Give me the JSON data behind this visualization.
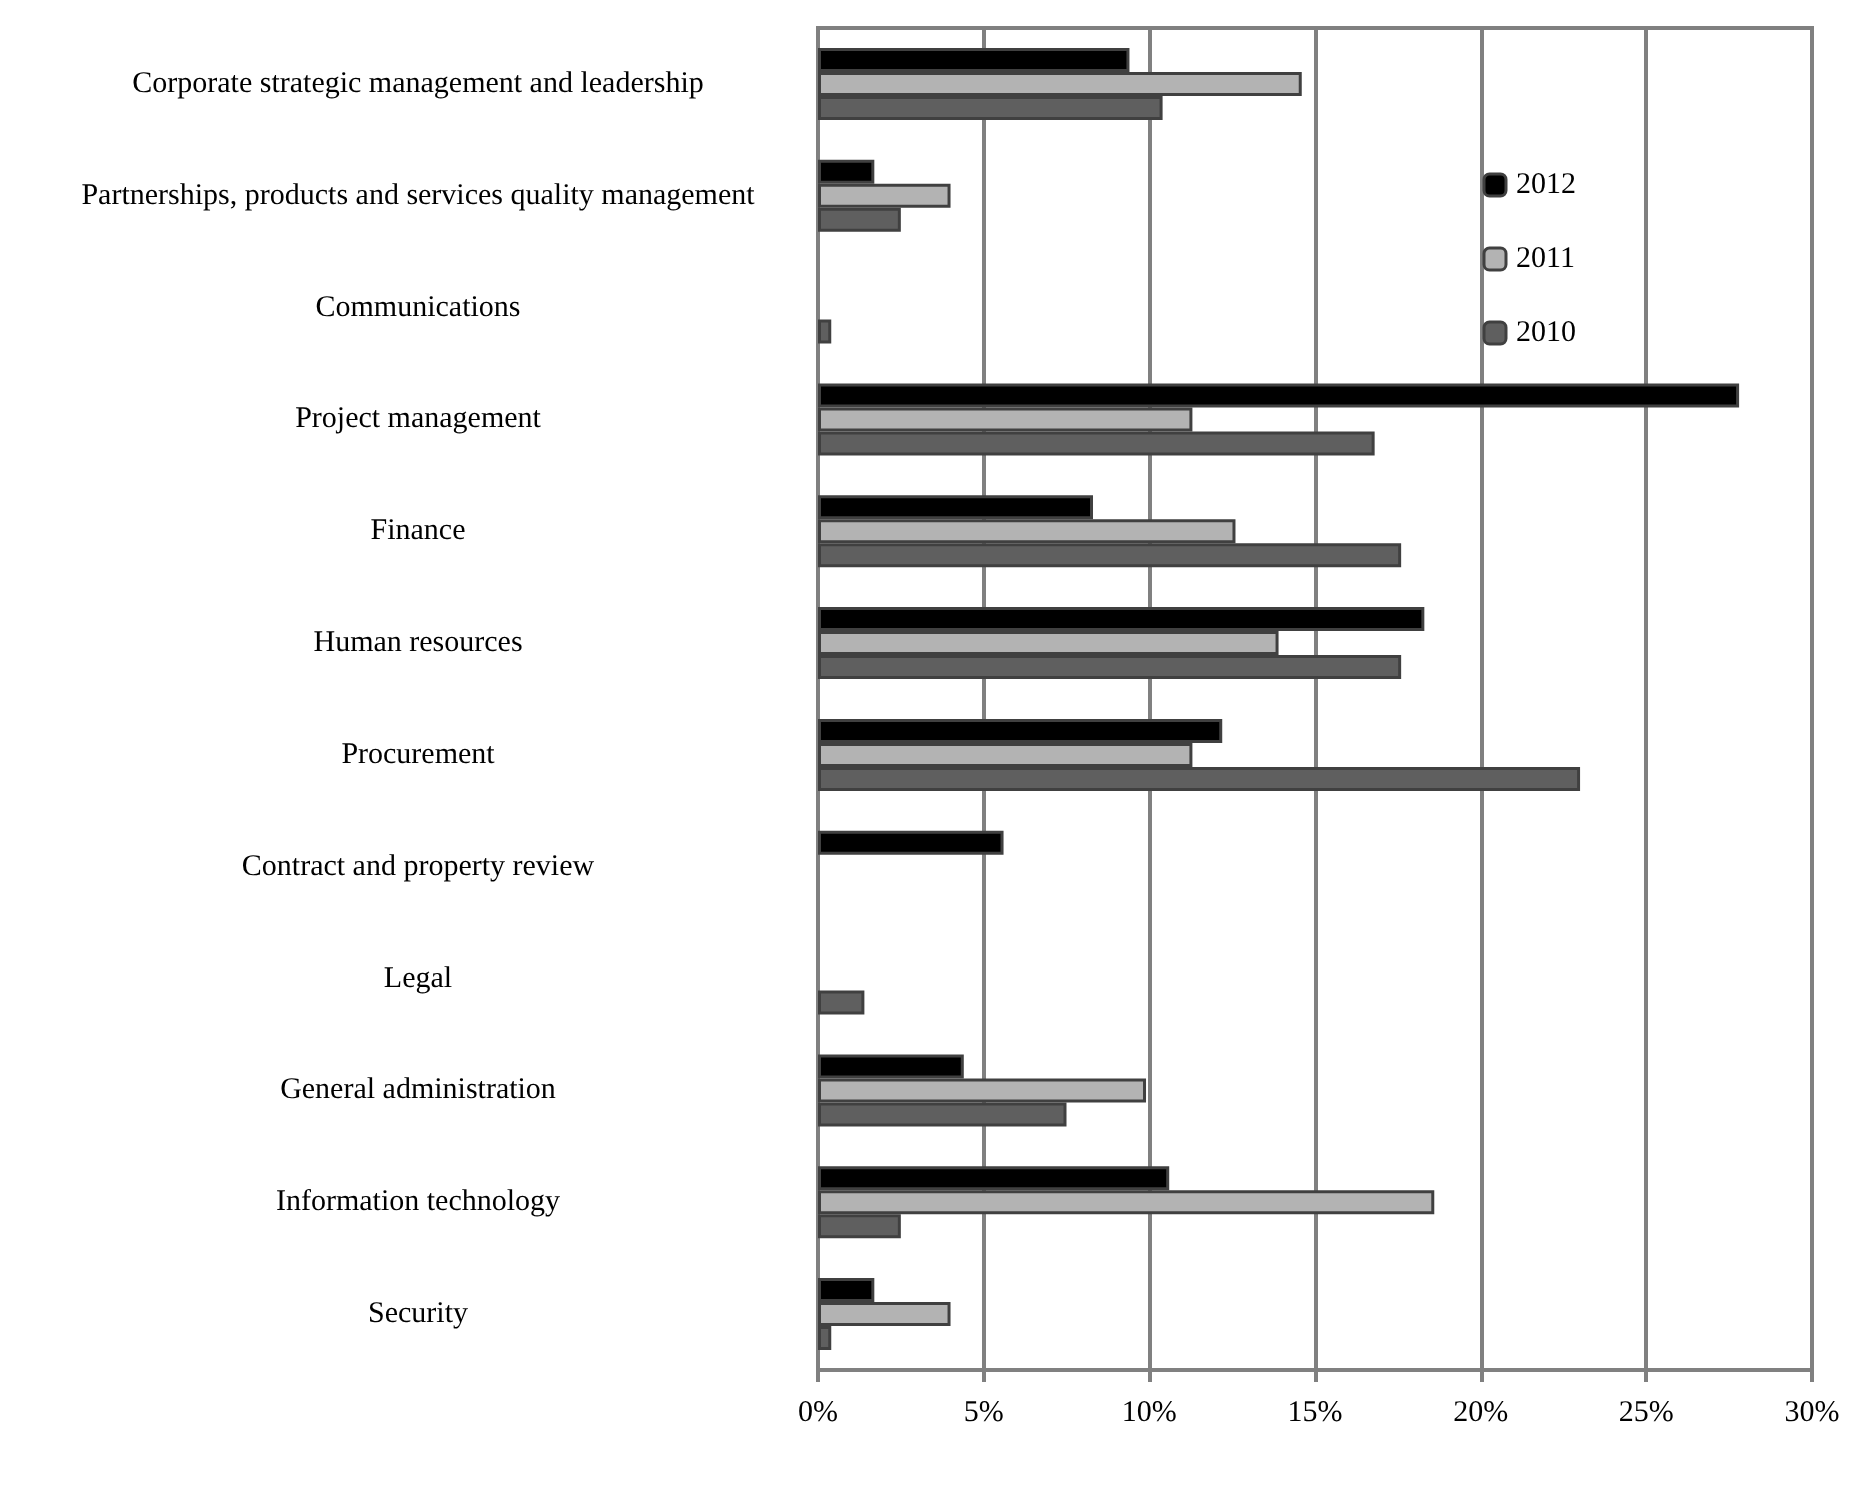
{
  "chart_data": {
    "type": "bar",
    "orientation": "horizontal",
    "categories": [
      "Corporate strategic management and leadership",
      "Partnerships, products and services quality management",
      "Communications",
      "Project management",
      "Finance",
      "Human resources",
      "Procurement",
      "Contract and property review",
      "Legal",
      "General administration",
      "Information technology",
      "Security"
    ],
    "series": [
      {
        "name": "2012",
        "color": "#000000",
        "values": [
          9.4,
          1.7,
          null,
          27.8,
          8.3,
          18.3,
          12.2,
          5.6,
          null,
          4.4,
          10.6,
          1.7
        ]
      },
      {
        "name": "2011",
        "color": "#b3b3b3",
        "values": [
          14.6,
          4.0,
          null,
          11.3,
          12.6,
          13.9,
          11.3,
          null,
          null,
          9.9,
          18.6,
          4.0
        ]
      },
      {
        "name": "2010",
        "color": "#5f5f5f",
        "values": [
          10.4,
          2.5,
          0.4,
          16.8,
          17.6,
          17.6,
          23.0,
          null,
          1.4,
          7.5,
          2.5,
          0.4
        ]
      }
    ],
    "xlim": [
      0,
      30
    ],
    "xticks": [
      {
        "value": 0,
        "label": "0%"
      },
      {
        "value": 5,
        "label": "5%"
      },
      {
        "value": 10,
        "label": "10%"
      },
      {
        "value": 15,
        "label": "15%"
      },
      {
        "value": 20,
        "label": "20%"
      },
      {
        "value": 25,
        "label": "25%"
      },
      {
        "value": 30,
        "label": "30%"
      }
    ],
    "grid": "x",
    "legend": "top right"
  }
}
